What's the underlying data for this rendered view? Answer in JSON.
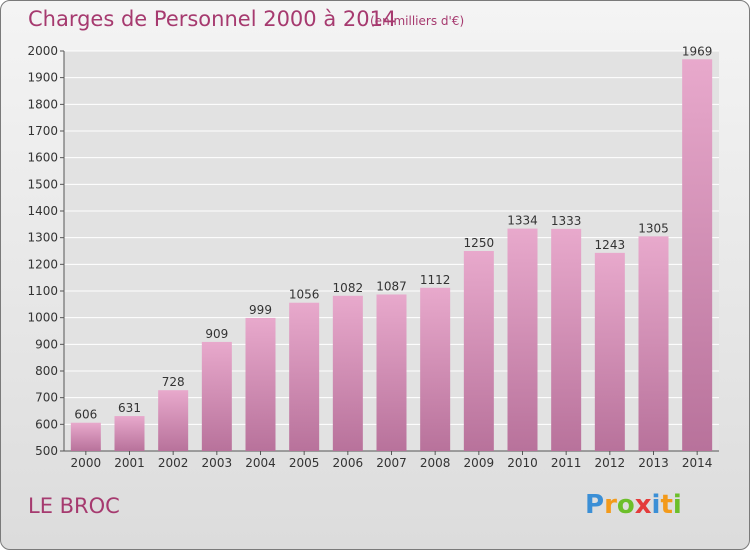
{
  "header": {
    "title": "Charges de Personnel 2000 à 2014",
    "subtitle": "(en milliers d'€)"
  },
  "footer": {
    "place": "LE BROC",
    "logo_letters": [
      "P",
      "r",
      "o",
      "x",
      "i",
      "t",
      "i"
    ],
    "logo_colors": [
      "#3b8fd6",
      "#f39a1a",
      "#6cbf2a",
      "#e43b3b",
      "#3b8fd6",
      "#f39a1a",
      "#6cbf2a"
    ]
  },
  "chart_data": {
    "type": "bar",
    "title": "Charges de Personnel 2000 à 2014",
    "subtitle": "(en milliers d'€)",
    "categories": [
      "2000",
      "2001",
      "2002",
      "2003",
      "2004",
      "2005",
      "2006",
      "2007",
      "2008",
      "2009",
      "2010",
      "2011",
      "2012",
      "2013",
      "2014"
    ],
    "values": [
      606,
      631,
      728,
      909,
      999,
      1056,
      1082,
      1087,
      1112,
      1250,
      1334,
      1333,
      1243,
      1305,
      1969
    ],
    "ylim": [
      500,
      2000
    ],
    "yticks": [
      500,
      600,
      700,
      800,
      900,
      1000,
      1100,
      1200,
      1300,
      1400,
      1500,
      1600,
      1700,
      1800,
      1900,
      2000
    ],
    "grid": true,
    "bar_color_top": "#e8a9cc",
    "bar_color_bottom": "#b8729b",
    "grid_color": "#ffffff",
    "text_color": "#333333"
  }
}
